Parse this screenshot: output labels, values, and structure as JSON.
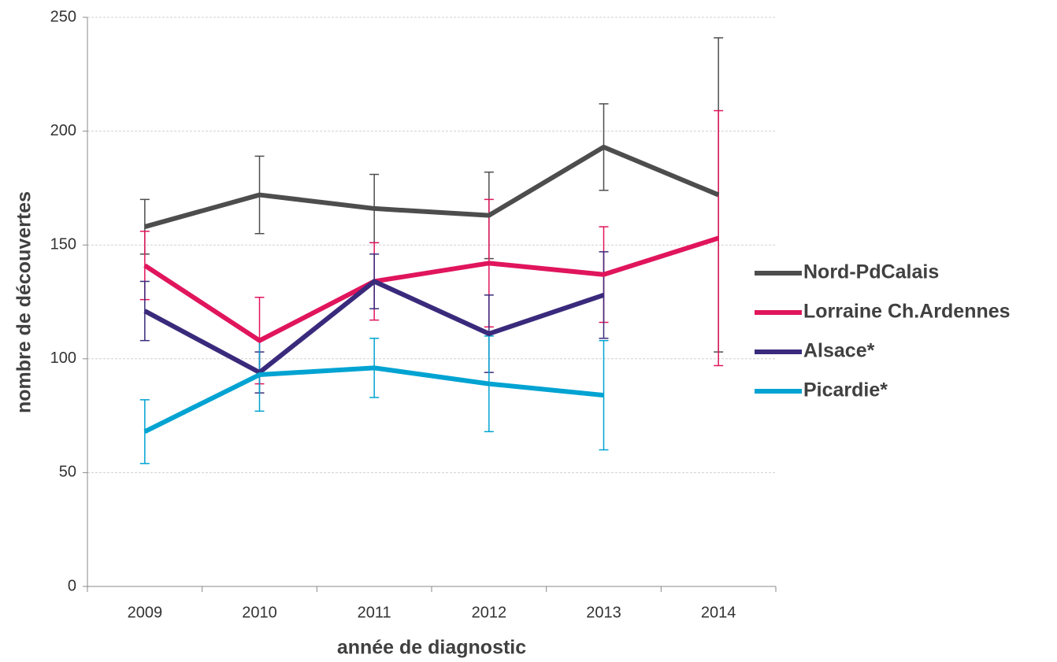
{
  "chart_data": {
    "type": "line",
    "x_label": "année de diagnostic",
    "y_label": "nombre de découvertes",
    "categories": [
      "2009",
      "2010",
      "2011",
      "2012",
      "2013",
      "2014"
    ],
    "series": [
      {
        "name": "Nord-PdCalais",
        "color": "#4d4d4d",
        "values": [
          158,
          172,
          166,
          163,
          193,
          172
        ],
        "errors": [
          12,
          17,
          15,
          19,
          19,
          69
        ]
      },
      {
        "name": "Lorraine Ch.Ardennes",
        "color": "#e0155c",
        "values": [
          141,
          108,
          134,
          142,
          137,
          153
        ],
        "errors": [
          15,
          19,
          17,
          28,
          21,
          56
        ]
      },
      {
        "name": "Alsace*",
        "color": "#3a2a7c",
        "values": [
          121,
          94,
          134,
          111,
          128,
          null
        ],
        "errors": [
          13,
          9,
          12,
          17,
          19,
          null
        ]
      },
      {
        "name": "Picardie*",
        "color": "#00a3d2",
        "values": [
          68,
          93,
          96,
          89,
          84,
          null
        ],
        "errors": [
          14,
          16,
          13,
          21,
          24,
          null
        ]
      }
    ],
    "ylim": [
      0,
      250
    ],
    "yticks": [
      0,
      50,
      100,
      150,
      200,
      250
    ],
    "grid": true,
    "legend": "right"
  }
}
